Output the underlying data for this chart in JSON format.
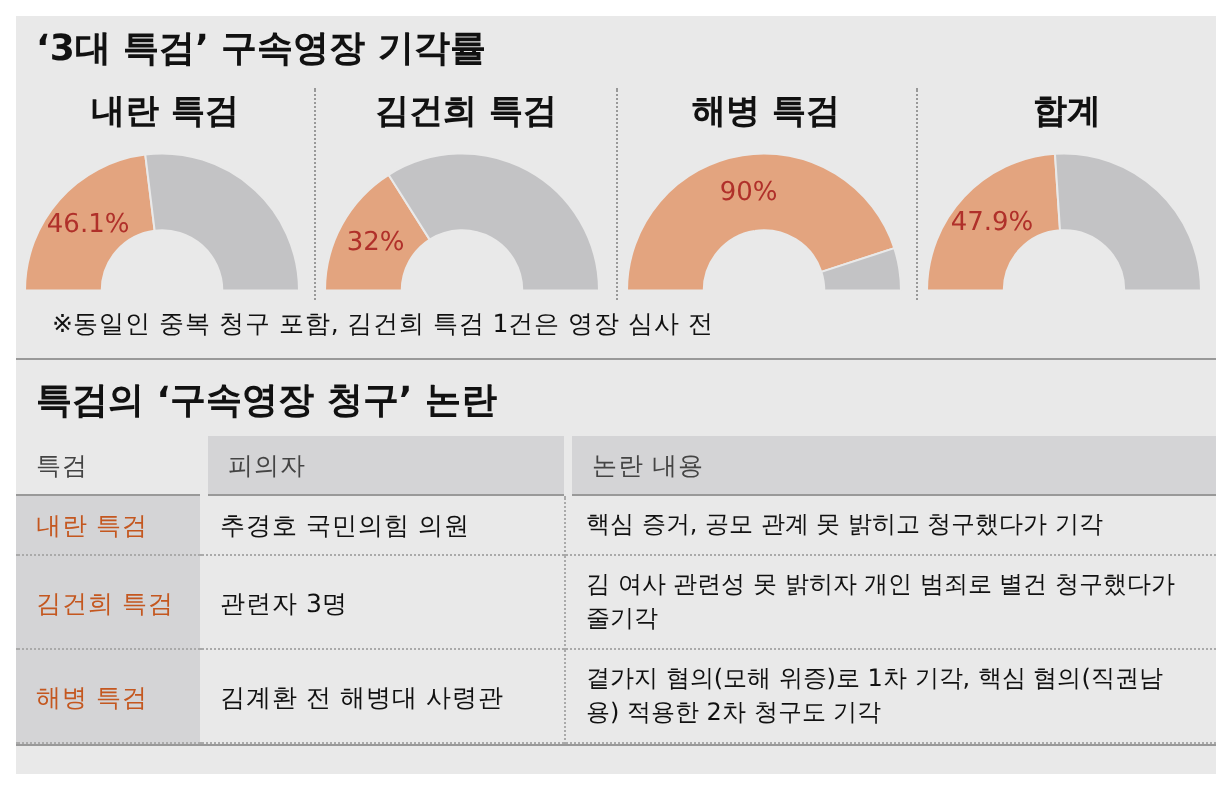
{
  "chart_data": [
    {
      "type": "other",
      "title": "‘3대 특검’ 구속영장 기각률"
    },
    {
      "type": "donut",
      "title": "내란 특검",
      "categories": [
        null,
        null
      ],
      "values": [
        46.1,
        53.9
      ],
      "colors": [
        "#e3a47f",
        "#c3c3c5"
      ],
      "value_labels": [
        "46.1%",
        null
      ]
    },
    {
      "type": "donut",
      "title": "김건희 특검",
      "categories": [
        null,
        null
      ],
      "values": [
        32,
        68
      ],
      "colors": [
        "#e3a47f",
        "#c3c3c5"
      ],
      "value_labels": [
        "32%",
        null
      ]
    },
    {
      "type": "donut",
      "title": "해병 특검",
      "categories": [
        null,
        null
      ],
      "values": [
        90,
        10
      ],
      "colors": [
        "#e3a47f",
        "#c3c3c5"
      ],
      "value_labels": [
        "90%",
        null
      ]
    },
    {
      "type": "donut",
      "title": "합계",
      "categories": [
        null,
        null
      ],
      "values": [
        47.9,
        52.1
      ],
      "colors": [
        "#e3a47f",
        "#c3c3c5"
      ],
      "value_labels": [
        "47.9%",
        null
      ]
    },
    {
      "type": "other",
      "annotations": [
        "※동일인 중복 청구 포함, 김건희 특검 1건은 영장 심사 전"
      ]
    },
    {
      "type": "other",
      "title": "특검의 ‘구속영장 청구’ 논란",
      "annotations": [
        "특검",
        "피의자",
        "논란 내용",
        "내란 특검",
        "추경호 국민의힘 의원",
        "핵심 증거, 공모 관계 못 밝히고 청구했다가 기각",
        "김건희 특검",
        "관련자 3명",
        "김 여사 관련성 못 밝히자 개인 범죄로 별건 청구했다가 줄기각",
        "해병 특검",
        "김계환 전 해병대 사령관",
        "곁가지 혐의(모해 위증)로 1차 기각, 핵심 혐의(직권남용) 적용한 2차 청구도 기각"
      ]
    }
  ]
}
